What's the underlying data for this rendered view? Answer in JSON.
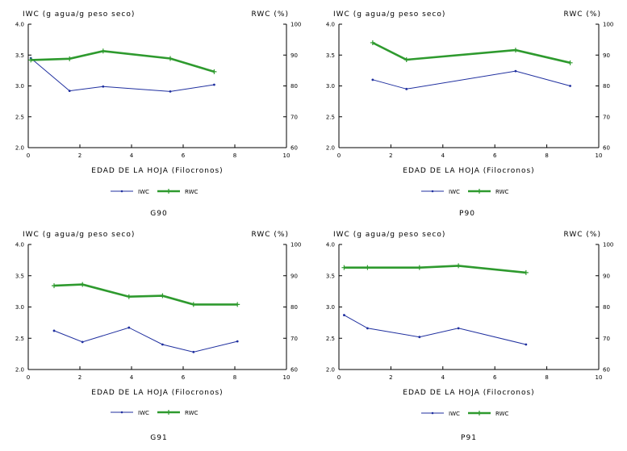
{
  "legend_labels": {
    "iwc": "IWC",
    "rwc": "RWC"
  },
  "colors": {
    "iwc": "#1f2f9f",
    "rwc": "#2e9a2e",
    "axis": "#000000"
  },
  "chart_data": [
    {
      "type": "line",
      "title": "G90",
      "left_axis_label": "IWC (g agua/g peso seco)",
      "right_axis_label": "RWC (%)",
      "xlabel": "EDAD DE LA HOJA (Filocronos)",
      "xlim": [
        0,
        10
      ],
      "ylim": [
        2.0,
        4.0
      ],
      "y2lim": [
        60,
        100
      ],
      "xticks": [
        "0",
        "2",
        "4",
        "6",
        "8",
        "10"
      ],
      "yticks": [
        "2.0",
        "2.5",
        "3.0",
        "3.5",
        "4.0"
      ],
      "y2ticks": [
        "60",
        "70",
        "80",
        "90",
        "100"
      ],
      "series": [
        {
          "name": "IWC",
          "axis": "left",
          "x": [
            0.1,
            1.6,
            2.9,
            5.5,
            7.2
          ],
          "y": [
            3.45,
            2.92,
            2.99,
            2.91,
            3.02
          ]
        },
        {
          "name": "RWC",
          "axis": "right",
          "x": [
            0.1,
            1.6,
            2.9,
            5.5,
            7.2
          ],
          "y": [
            88.4,
            88.8,
            91.3,
            88.9,
            84.6
          ]
        }
      ]
    },
    {
      "type": "line",
      "title": "P90",
      "left_axis_label": "IWC (g agua/g peso seco)",
      "right_axis_label": "RWC (%)",
      "xlabel": "EDAD DE LA HOJA (Filocronos)",
      "xlim": [
        0,
        10
      ],
      "ylim": [
        2.0,
        4.0
      ],
      "y2lim": [
        60,
        100
      ],
      "xticks": [
        "0",
        "2",
        "4",
        "6",
        "8",
        "10"
      ],
      "yticks": [
        "2.0",
        "2.5",
        "3.0",
        "3.5",
        "4.0"
      ],
      "y2ticks": [
        "60",
        "70",
        "80",
        "90",
        "100"
      ],
      "series": [
        {
          "name": "IWC",
          "axis": "left",
          "x": [
            1.3,
            2.6,
            6.8,
            8.9
          ],
          "y": [
            3.1,
            2.95,
            3.24,
            3.0
          ]
        },
        {
          "name": "RWC",
          "axis": "right",
          "x": [
            1.3,
            2.6,
            6.8,
            8.9
          ],
          "y": [
            94.0,
            88.5,
            91.6,
            87.5
          ]
        }
      ]
    },
    {
      "type": "line",
      "title": "G91",
      "left_axis_label": "IWC (g agua/g peso seco)",
      "right_axis_label": "RWC (%)",
      "xlabel": "EDAD DE LA HOJA (Filocronos)",
      "xlim": [
        0,
        10
      ],
      "ylim": [
        2.0,
        4.0
      ],
      "y2lim": [
        60,
        100
      ],
      "xticks": [
        "0",
        "2",
        "4",
        "6",
        "8",
        "10"
      ],
      "yticks": [
        "2.0",
        "2.5",
        "3.0",
        "3.5",
        "4.0"
      ],
      "y2ticks": [
        "60",
        "70",
        "80",
        "90",
        "100"
      ],
      "series": [
        {
          "name": "IWC",
          "axis": "left",
          "x": [
            1.0,
            2.1,
            3.9,
            5.2,
            6.4,
            8.1
          ],
          "y": [
            2.62,
            2.44,
            2.67,
            2.4,
            2.28,
            2.45
          ]
        },
        {
          "name": "RWC",
          "axis": "right",
          "x": [
            1.0,
            2.1,
            3.9,
            5.2,
            6.4,
            8.1
          ],
          "y": [
            86.8,
            87.2,
            83.3,
            83.6,
            80.8,
            80.8
          ]
        }
      ]
    },
    {
      "type": "line",
      "title": "P91",
      "left_axis_label": "IWC (g agua/g peso seco)",
      "right_axis_label": "RWC (%)",
      "xlabel": "EDAD DE LA HOJA (Filocronos)",
      "xlim": [
        0,
        10
      ],
      "ylim": [
        2.0,
        4.0
      ],
      "y2lim": [
        60,
        100
      ],
      "xticks": [
        "0",
        "2",
        "4",
        "6",
        "8",
        "10"
      ],
      "yticks": [
        "2.0",
        "2.5",
        "3.0",
        "3.5",
        "4.0"
      ],
      "y2ticks": [
        "60",
        "70",
        "80",
        "90",
        "100"
      ],
      "series": [
        {
          "name": "IWC",
          "axis": "left",
          "x": [
            0.2,
            1.1,
            3.1,
            4.6,
            7.2
          ],
          "y": [
            2.87,
            2.66,
            2.52,
            2.66,
            2.4
          ]
        },
        {
          "name": "RWC",
          "axis": "right",
          "x": [
            0.2,
            1.1,
            3.1,
            4.6,
            7.2
          ],
          "y": [
            92.6,
            92.6,
            92.6,
            93.2,
            91.0
          ]
        }
      ]
    }
  ]
}
